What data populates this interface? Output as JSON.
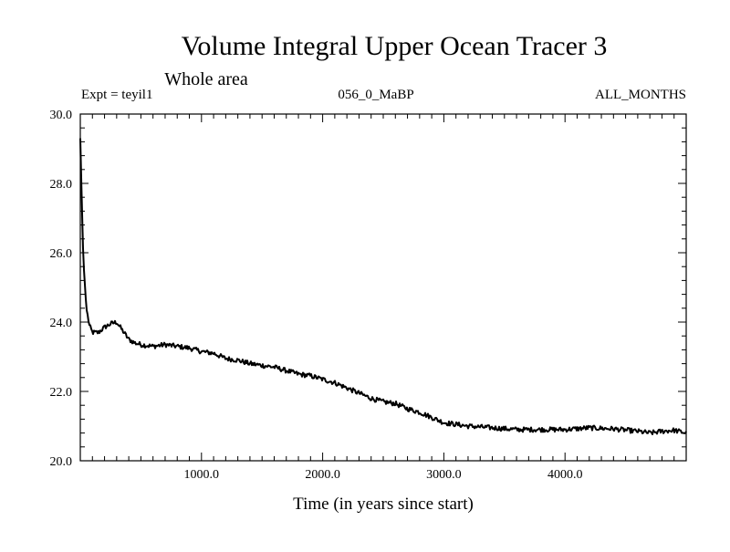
{
  "chart_data": {
    "type": "line",
    "title": "Volume Integral Upper Ocean Tracer 3",
    "subtitle": "Whole area",
    "expt_label": "Expt = teyil1",
    "run_label": "056_0_MaBP",
    "period_label": "ALL_MONTHS",
    "xlabel": "Time (in years since start)",
    "ylabel": "",
    "xlim": [
      0,
      5000
    ],
    "ylim": [
      20.0,
      30.0
    ],
    "x_ticks": [
      1000,
      2000,
      3000,
      4000
    ],
    "x_tick_labels": [
      "1000.0",
      "2000.0",
      "3000.0",
      "4000.0"
    ],
    "y_ticks": [
      20,
      22,
      24,
      26,
      28,
      30
    ],
    "y_tick_labels": [
      "20.0",
      "22.0",
      "24.0",
      "26.0",
      "28.0",
      "30.0"
    ],
    "grid": false,
    "line_color": "#000000",
    "series": [
      {
        "name": "Volume Integral Upper Ocean Tracer 3",
        "x": [
          0,
          10,
          25,
          50,
          75,
          100,
          150,
          200,
          250,
          300,
          350,
          400,
          450,
          500,
          600,
          700,
          800,
          900,
          1000,
          1100,
          1200,
          1300,
          1400,
          1500,
          1600,
          1700,
          1800,
          1900,
          2000,
          2100,
          2200,
          2300,
          2400,
          2500,
          2600,
          2700,
          2800,
          2900,
          3000,
          3200,
          3400,
          3600,
          3800,
          4000,
          4200,
          4400,
          4600,
          4700,
          4800,
          4900,
          5000
        ],
        "y": [
          29.3,
          27.8,
          25.8,
          24.4,
          23.9,
          23.7,
          23.7,
          23.85,
          23.95,
          24.0,
          23.75,
          23.5,
          23.4,
          23.35,
          23.3,
          23.35,
          23.3,
          23.25,
          23.15,
          23.1,
          22.95,
          22.9,
          22.8,
          22.75,
          22.7,
          22.6,
          22.5,
          22.45,
          22.35,
          22.25,
          22.1,
          21.95,
          21.8,
          21.7,
          21.65,
          21.5,
          21.4,
          21.25,
          21.1,
          21.0,
          20.95,
          20.9,
          20.9,
          20.9,
          20.95,
          20.92,
          20.85,
          20.8,
          20.85,
          20.88,
          20.8
        ]
      }
    ]
  }
}
